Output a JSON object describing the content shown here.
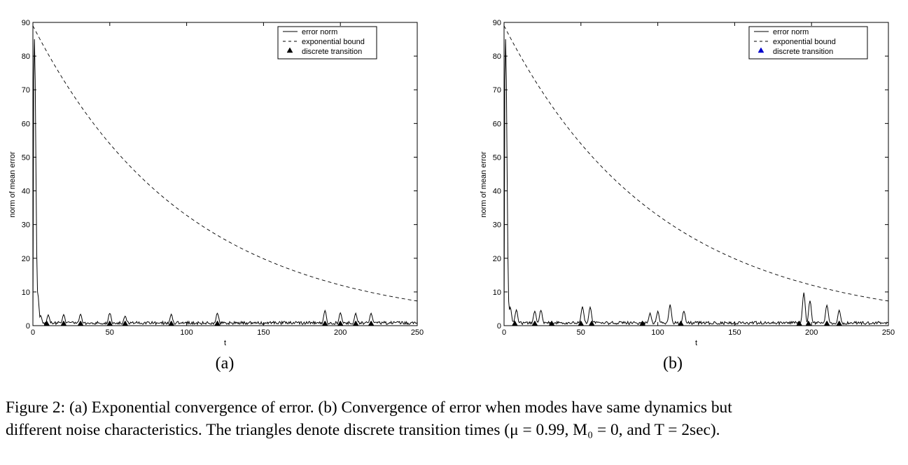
{
  "chart_data": [
    {
      "type": "line",
      "panel": "(a)",
      "xlabel": "t",
      "ylabel": "norm of mean error",
      "xlim": [
        0,
        250
      ],
      "ylim": [
        0,
        90
      ],
      "xticks": [
        0,
        50,
        100,
        150,
        200,
        250
      ],
      "yticks": [
        0,
        10,
        20,
        30,
        40,
        50,
        60,
        70,
        80,
        90
      ],
      "legend": {
        "position": "top-right",
        "entries": [
          "error norm",
          "exponential bound",
          "discrete transition"
        ],
        "marker_color": "#000000"
      },
      "exponential_bound": {
        "y0": 89,
        "decay_per_t": 0.01,
        "points": [
          [
            0,
            89
          ],
          [
            50,
            54
          ],
          [
            100,
            33
          ],
          [
            150,
            20
          ],
          [
            200,
            12
          ],
          [
            250,
            7.3
          ]
        ]
      },
      "error_norm_peaks": [
        [
          1,
          85
        ],
        [
          3,
          10
        ],
        [
          5,
          3
        ],
        [
          10,
          3
        ],
        [
          20,
          3
        ],
        [
          31,
          3.3
        ],
        [
          50,
          3.6
        ],
        [
          60,
          2.8
        ],
        [
          90,
          3.2
        ],
        [
          120,
          3.6
        ],
        [
          190,
          4.2
        ],
        [
          200,
          3.8
        ],
        [
          210,
          3.4
        ],
        [
          220,
          3.4
        ]
      ],
      "transition_times": [
        9,
        20,
        31,
        50,
        60,
        90,
        120,
        190,
        200,
        210,
        220
      ]
    },
    {
      "type": "line",
      "panel": "(b)",
      "xlabel": "t",
      "ylabel": "norm of mean error",
      "xlim": [
        0,
        250
      ],
      "ylim": [
        0,
        90
      ],
      "xticks": [
        0,
        50,
        100,
        150,
        200,
        250
      ],
      "yticks": [
        0,
        10,
        20,
        30,
        40,
        50,
        60,
        70,
        80,
        90
      ],
      "legend": {
        "position": "top-right",
        "entries": [
          "error norm",
          "exponential bound",
          "discrete transition"
        ],
        "marker_color": "#0000cc"
      },
      "exponential_bound": {
        "y0": 89,
        "decay_per_t": 0.01,
        "points": [
          [
            0,
            89
          ],
          [
            50,
            54
          ],
          [
            100,
            33
          ],
          [
            150,
            20
          ],
          [
            200,
            12
          ],
          [
            250,
            7.3
          ]
        ]
      },
      "error_norm_peaks": [
        [
          1,
          85
        ],
        [
          4,
          5.5
        ],
        [
          8,
          4.5
        ],
        [
          20,
          4.2
        ],
        [
          24,
          4.5
        ],
        [
          51,
          5.5
        ],
        [
          56,
          5.2
        ],
        [
          95,
          3.5
        ],
        [
          100,
          4
        ],
        [
          108,
          6
        ],
        [
          117,
          4.2
        ],
        [
          195,
          9.5
        ],
        [
          199,
          7.2
        ],
        [
          210,
          6
        ],
        [
          218,
          4.5
        ]
      ],
      "transition_times": [
        7,
        20,
        31,
        50,
        57,
        90,
        115,
        192,
        198,
        210,
        218
      ]
    }
  ],
  "subfigure_labels": [
    "(a)",
    "(b)"
  ],
  "caption": {
    "line1": "Figure 2: (a) Exponential convergence of error. (b) Convergence of error when modes have same dynamics but",
    "line2": "different noise characteristics. The triangles denote discrete transition times (μ = 0.99, M₀ = 0, and T = 2sec)."
  }
}
